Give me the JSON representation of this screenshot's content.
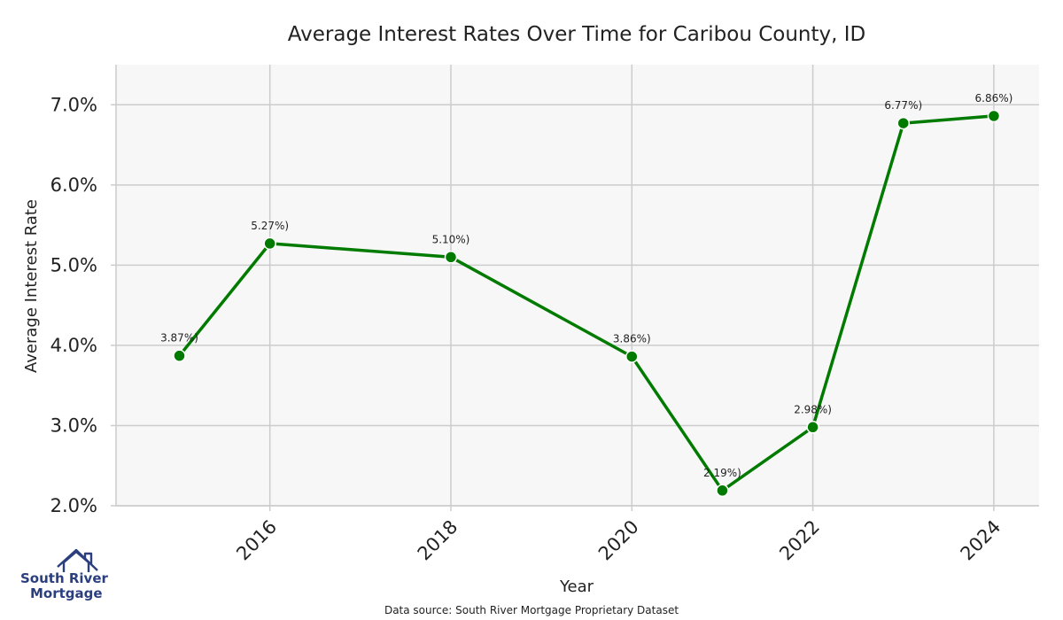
{
  "chart_data": {
    "type": "line",
    "title": "Average Interest Rates Over Time for Caribou County, ID",
    "xlabel": "Year",
    "ylabel": "Average Interest Rate",
    "x": [
      2015,
      2016,
      2018,
      2020,
      2021,
      2022,
      2023,
      2024
    ],
    "series": [
      {
        "values": [
          3.87,
          5.27,
          5.1,
          3.86,
          2.19,
          2.98,
          6.77,
          6.86
        ],
        "data_labels": [
          "3.87%)",
          "5.27%)",
          "5.10%)",
          "3.86%)",
          "2.19%)",
          "2.98%)",
          "6.77%)",
          "6.86%)"
        ],
        "color": "#007b00"
      }
    ],
    "xlim": [
      2014.3,
      2024.5
    ],
    "ylim": [
      2.0,
      7.5
    ],
    "x_ticks": [
      2016,
      2018,
      2020,
      2022,
      2024
    ],
    "x_tick_labels": [
      "2016",
      "2018",
      "2020",
      "2022",
      "2024"
    ],
    "y_ticks": [
      2.0,
      3.0,
      4.0,
      5.0,
      6.0,
      7.0
    ],
    "y_tick_labels": [
      "2.0%",
      "3.0%",
      "4.0%",
      "5.0%",
      "6.0%",
      "7.0%"
    ],
    "grid": true,
    "plot_background": "#f7f7f7",
    "grid_color": "#cccccc"
  },
  "source_note": "Data source: South River Mortgage Proprietary Dataset",
  "logo": {
    "line1": "South River",
    "line2": "Mortgage",
    "color": "#2b3e7e"
  }
}
